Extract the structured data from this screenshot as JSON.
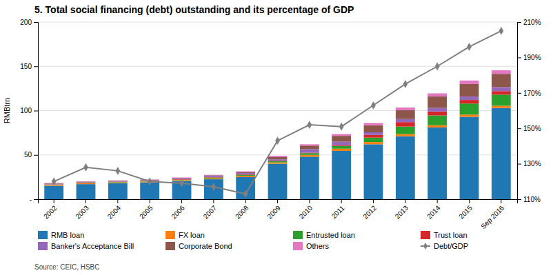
{
  "chart_data": {
    "type": "bar",
    "stacked": true,
    "title": "5. Total social financing (debt) outstanding and its percentage of GDP",
    "source": "Source: CEIC, HSBC",
    "ylabel": "RMBtrn",
    "categories": [
      "2002",
      "2003",
      "2004",
      "2005",
      "2006",
      "2007",
      "2008",
      "2009",
      "2010",
      "2011",
      "2012",
      "2013",
      "2014",
      "2015",
      "Sep 2016"
    ],
    "series": [
      {
        "name": "RMB loan",
        "values": [
          15.0,
          17.0,
          18.0,
          19.0,
          20.5,
          22.5,
          25.0,
          40.0,
          48.0,
          54.5,
          62.0,
          71.0,
          81.0,
          93.0,
          103.0
        ]
      },
      {
        "name": "FX loan",
        "values": [
          1.0,
          1.0,
          1.0,
          1.0,
          1.0,
          1.0,
          1.5,
          1.5,
          2.0,
          2.5,
          2.5,
          2.5,
          2.5,
          2.5,
          2.5
        ]
      },
      {
        "name": "Entrusted loan",
        "values": [
          0.5,
          0.5,
          0.5,
          0.5,
          0.5,
          1.0,
          1.0,
          1.5,
          2.0,
          3.0,
          5.0,
          8.5,
          11.0,
          12.5,
          12.5
        ]
      },
      {
        "name": "Trust loan",
        "values": [
          0.3,
          0.3,
          0.3,
          0.3,
          0.5,
          0.5,
          0.5,
          0.5,
          0.5,
          1.0,
          3.0,
          5.0,
          4.5,
          4.0,
          4.0
        ]
      },
      {
        "name": "Banker's Acceptance Bill",
        "values": [
          0.5,
          0.5,
          0.5,
          0.5,
          1.0,
          1.5,
          1.5,
          1.5,
          4.0,
          4.0,
          3.0,
          3.5,
          4.0,
          4.0,
          4.5
        ]
      },
      {
        "name": "Corporate Bond",
        "values": [
          0.5,
          0.5,
          0.5,
          0.5,
          0.5,
          0.5,
          1.0,
          2.5,
          4.0,
          6.5,
          8.0,
          10.0,
          13.0,
          14.0,
          15.0
        ]
      },
      {
        "name": "Others",
        "values": [
          0.5,
          0.5,
          0.5,
          0.5,
          0.5,
          0.5,
          1.0,
          1.5,
          1.5,
          2.0,
          2.5,
          3.0,
          3.5,
          4.0,
          4.0
        ]
      },
      {
        "name": "Debt/GDP",
        "type": "line",
        "marker": "diamond",
        "axis": "y2",
        "values": [
          120,
          128,
          126,
          120,
          119,
          117,
          113,
          143,
          152,
          151,
          163,
          175,
          185,
          196,
          205
        ]
      }
    ],
    "ylim": [
      0,
      200
    ],
    "yticks": [
      {
        "value": 0,
        "label": "-"
      },
      50,
      100,
      150,
      200
    ],
    "y2lim": [
      110,
      210
    ],
    "y2ticks": [
      {
        "value": 110,
        "label": "110%"
      },
      {
        "value": 130,
        "label": "130%"
      },
      {
        "value": 150,
        "label": "150%"
      },
      {
        "value": 170,
        "label": "170%"
      },
      {
        "value": 190,
        "label": "190%"
      },
      {
        "value": 210,
        "label": "210%"
      }
    ],
    "grid": true,
    "legend": "bottom"
  }
}
